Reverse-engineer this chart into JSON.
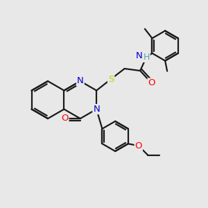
{
  "bg_color": "#e8e8e8",
  "atom_colors": {
    "N": "#0000cd",
    "O": "#ff0000",
    "S": "#cccc00",
    "C": "#1a1a1a",
    "H": "#5f9ea0"
  },
  "bond_color": "#1a1a1a",
  "line_width": 1.6,
  "font_size": 9.5
}
